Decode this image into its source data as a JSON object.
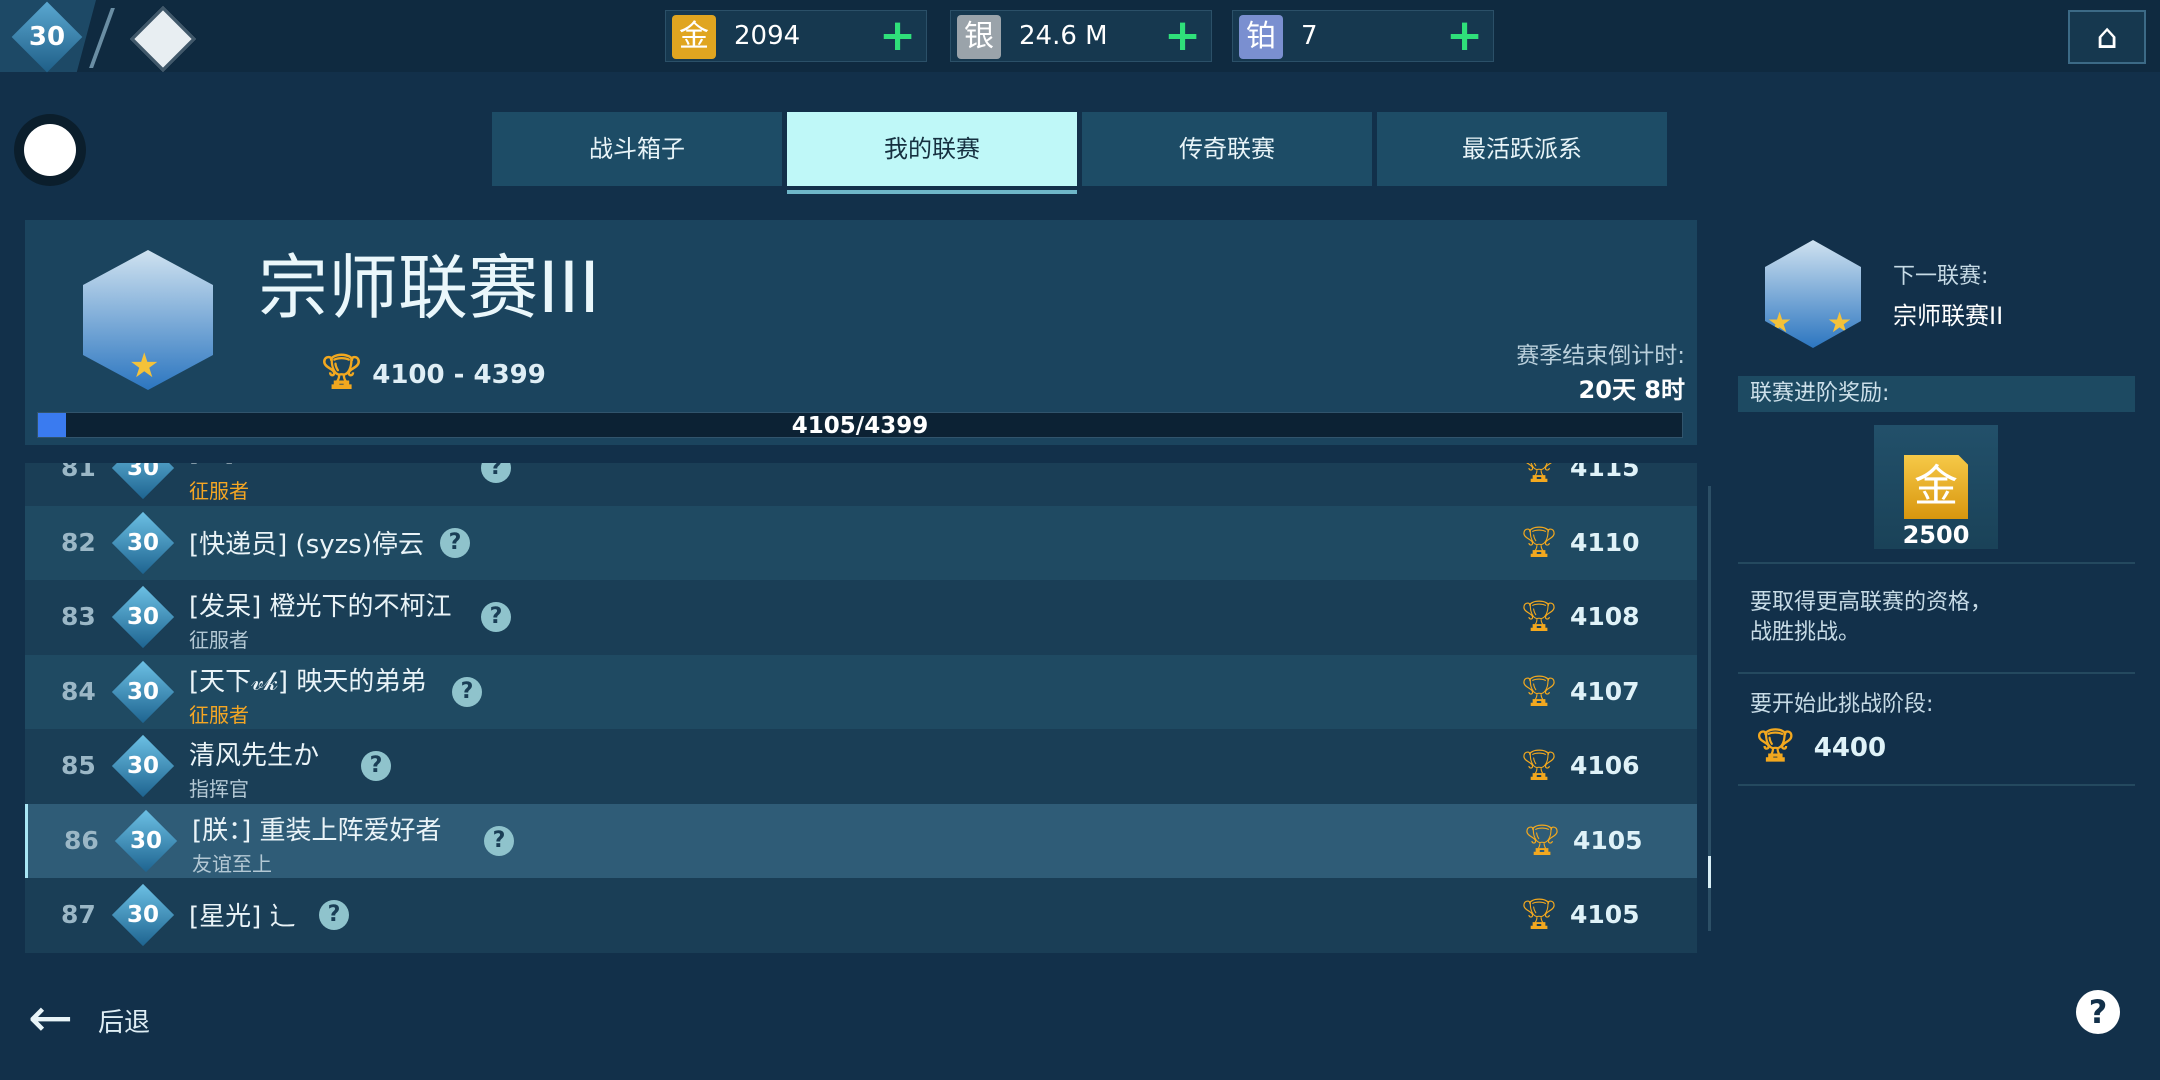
{
  "topbar": {
    "level": "30",
    "currencies": [
      {
        "icon": "金",
        "value": "2094",
        "color": "#e0a520"
      },
      {
        "icon": "银",
        "value": "24.6 M",
        "color": "#9aa3aa"
      },
      {
        "icon": "铂",
        "value": "7",
        "color": "#7a8fd0"
      }
    ],
    "plus": "+"
  },
  "tabs": [
    {
      "label": "战斗箱子"
    },
    {
      "label": "我的联赛"
    },
    {
      "label": "传奇联赛"
    },
    {
      "label": "最活跃派系"
    }
  ],
  "league": {
    "title": "宗师联赛III",
    "range": "4100 - 4399",
    "countdown_label": "赛季结束倒计时:",
    "countdown": "20天 8时",
    "progress_text": "4105/4399",
    "progress_percent": 1.7
  },
  "rows": [
    {
      "rank": "81",
      "level": "30",
      "name": "[...]",
      "title": "征服者",
      "title_gold": true,
      "score": "4115"
    },
    {
      "rank": "82",
      "level": "30",
      "name": "[快递员] (syzs)停云",
      "title": "",
      "title_gold": false,
      "score": "4110"
    },
    {
      "rank": "83",
      "level": "30",
      "name": "[发呆] 橙光下的不柯江",
      "title": "征服者",
      "title_gold": false,
      "score": "4108"
    },
    {
      "rank": "84",
      "level": "30",
      "name": "[天下𝓋𝓀] 映天的弟弟",
      "title": "征服者",
      "title_gold": true,
      "score": "4107"
    },
    {
      "rank": "85",
      "level": "30",
      "name": "清风先生か",
      "title": "指挥官",
      "title_gold": false,
      "score": "4106"
    },
    {
      "rank": "86",
      "level": "30",
      "name": "[朕：] 重装上阵爱好者",
      "title": "友谊至上",
      "title_gold": false,
      "score": "4105",
      "highlight": true
    },
    {
      "rank": "87",
      "level": "30",
      "name": "[星光] ⻌",
      "title": "",
      "title_gold": false,
      "score": "4105"
    }
  ],
  "right": {
    "next_label": "下一联赛:",
    "next_name": "宗师联赛II",
    "reward_label": "联赛进阶奖励:",
    "reward_icon": "金",
    "reward_amount": "2500",
    "desc": "要取得更高联赛的资格，战胜挑战。",
    "start_label": "要开始此挑战阶段:",
    "start_score": "4400"
  },
  "footer": {
    "back": "后退",
    "help": "?"
  }
}
